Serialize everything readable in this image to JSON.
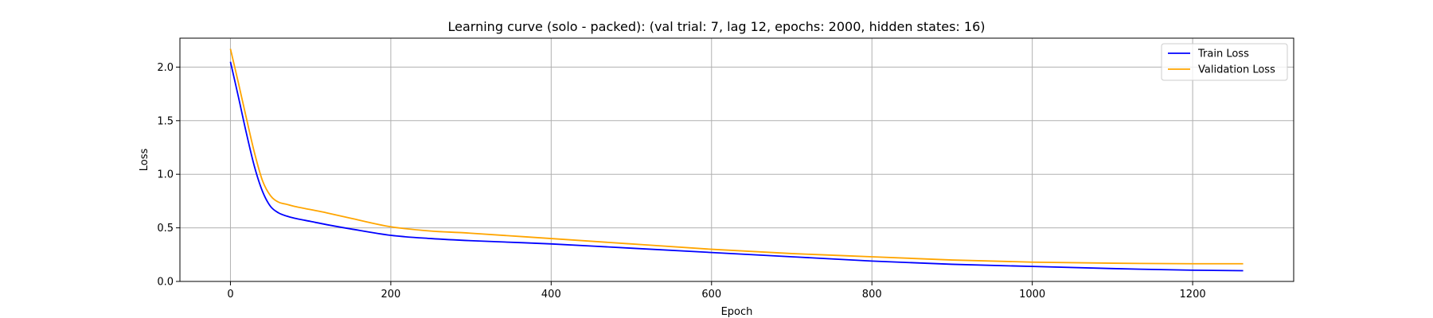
{
  "chart_data": {
    "type": "line",
    "title": "Learning curve (solo - packed): (val trial: 7, lag 12, epochs: 2000, hidden states: 16)",
    "xlabel": "Epoch",
    "ylabel": "Loss",
    "xlim": [
      -63,
      1326
    ],
    "ylim": [
      0.0,
      2.27
    ],
    "xticks": [
      0,
      200,
      400,
      600,
      800,
      1000,
      1200
    ],
    "yticks": [
      0.0,
      0.5,
      1.0,
      1.5,
      2.0
    ],
    "xtick_labels": [
      "0",
      "200",
      "400",
      "600",
      "800",
      "1000",
      "1200"
    ],
    "ytick_labels": [
      "0.0",
      "0.5",
      "1.0",
      "1.5",
      "2.0"
    ],
    "grid": true,
    "legend": "top-right",
    "series": [
      {
        "name": "Train Loss",
        "color": "#0000ff",
        "x": [
          0,
          10,
          20,
          30,
          40,
          50,
          60,
          70,
          80,
          100,
          120,
          150,
          200,
          250,
          300,
          400,
          500,
          600,
          700,
          800,
          900,
          1000,
          1100,
          1200,
          1263
        ],
        "y": [
          2.05,
          1.72,
          1.38,
          1.07,
          0.84,
          0.7,
          0.64,
          0.61,
          0.59,
          0.56,
          0.53,
          0.49,
          0.43,
          0.4,
          0.38,
          0.35,
          0.31,
          0.27,
          0.23,
          0.19,
          0.16,
          0.14,
          0.12,
          0.105,
          0.1
        ]
      },
      {
        "name": "Validation Loss",
        "color": "#ffa500",
        "x": [
          0,
          10,
          20,
          30,
          40,
          50,
          60,
          70,
          80,
          100,
          120,
          150,
          200,
          250,
          300,
          400,
          500,
          600,
          700,
          800,
          900,
          1000,
          1100,
          1200,
          1263
        ],
        "y": [
          2.17,
          1.85,
          1.52,
          1.2,
          0.94,
          0.8,
          0.74,
          0.72,
          0.7,
          0.67,
          0.64,
          0.59,
          0.51,
          0.47,
          0.45,
          0.4,
          0.35,
          0.3,
          0.26,
          0.23,
          0.2,
          0.18,
          0.17,
          0.165,
          0.165
        ]
      }
    ]
  }
}
